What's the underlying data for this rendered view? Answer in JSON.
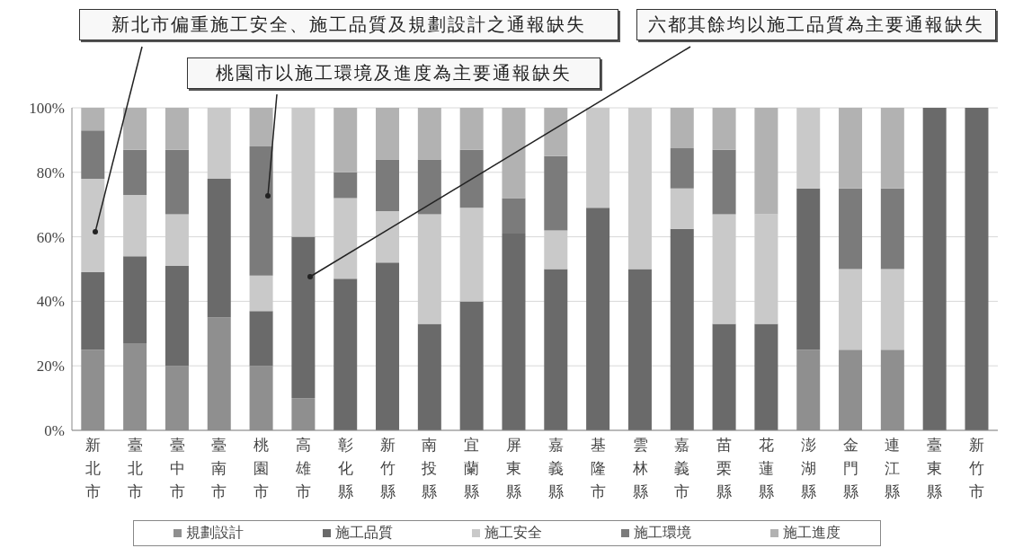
{
  "chart_data": {
    "type": "bar",
    "stacked": true,
    "categories": [
      "新北市",
      "臺北市",
      "臺中市",
      "臺南市",
      "桃園市",
      "高雄市",
      "彰化縣",
      "新竹縣",
      "南投縣",
      "宜蘭縣",
      "屏東縣",
      "嘉義縣",
      "基隆市",
      "雲林縣",
      "嘉義市",
      "苗栗縣",
      "花蓮縣",
      "澎湖縣",
      "金門縣",
      "連江縣",
      "臺東縣",
      "新竹市"
    ],
    "series": [
      {
        "name": "規劃設計",
        "color": "#8f8f8f",
        "values": [
          25,
          27,
          20,
          35,
          20,
          10,
          0,
          0,
          0,
          0,
          0,
          0,
          0,
          0,
          0,
          0,
          0,
          25,
          25,
          25,
          0,
          0
        ]
      },
      {
        "name": "施工品質",
        "color": "#6a6a6a",
        "values": [
          24,
          27,
          31,
          43,
          17,
          50,
          47,
          52,
          33,
          40,
          61,
          50,
          69,
          50,
          62.5,
          33,
          33,
          50,
          0,
          0,
          100,
          100
        ]
      },
      {
        "name": "施工安全",
        "color": "#c9c9c9",
        "values": [
          29,
          19,
          16,
          22,
          11,
          40,
          25,
          16,
          34,
          29,
          0,
          12,
          31,
          50,
          12.5,
          34,
          34,
          25,
          25,
          25,
          0,
          0
        ]
      },
      {
        "name": "施工環境",
        "color": "#7b7b7b",
        "values": [
          15,
          14,
          20,
          0,
          40,
          0,
          8,
          16,
          17,
          18,
          11,
          23,
          0,
          0,
          12.5,
          20,
          0,
          0,
          25,
          25,
          0,
          0
        ]
      },
      {
        "name": "施工進度",
        "color": "#b2b2b2",
        "values": [
          7,
          13,
          13,
          0,
          12,
          0,
          20,
          16,
          16,
          13,
          28,
          15,
          0,
          0,
          12.5,
          13,
          33,
          0,
          25,
          25,
          0,
          0
        ]
      }
    ],
    "ylim": [
      0,
      100
    ],
    "yticks": [
      {
        "value": 0,
        "label": "0%"
      },
      {
        "value": 20,
        "label": "20%"
      },
      {
        "value": 40,
        "label": "40%"
      },
      {
        "value": 60,
        "label": "60%"
      },
      {
        "value": 80,
        "label": "80%"
      },
      {
        "value": 100,
        "label": "100%"
      }
    ],
    "grid": "y",
    "legend": "bottom",
    "annotations": [
      "新北市偏重施工安全、施工品質及規劃設計之通報缺失",
      "桃園市以施工環境及進度為主要通報缺失",
      "六都其餘均以施工品質為主要通報缺失"
    ]
  }
}
